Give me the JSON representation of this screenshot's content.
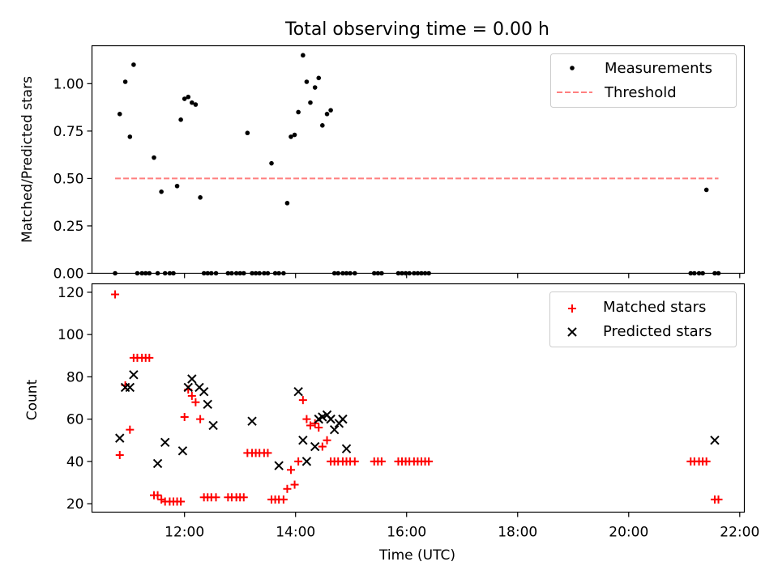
{
  "chart_data": [
    {
      "type": "scatter",
      "title": "Total observing time = 0.00 h",
      "ylabel": "Matched/Predicted stars",
      "ylim": [
        0,
        1.2
      ],
      "xlim": [
        "10:20",
        "22:05"
      ],
      "grid": false,
      "legend_position": "top-right",
      "y_ticks": [
        "0.00",
        "0.25",
        "0.50",
        "0.75",
        "1.00"
      ],
      "series": [
        {
          "name": "Measurements",
          "color": "#000000",
          "marker": "dot",
          "x": [
            "10:45",
            "10:50",
            "10:56",
            "11:01",
            "11:05",
            "11:09",
            "11:14",
            "11:18",
            "11:22",
            "11:27",
            "11:31",
            "11:35",
            "11:39",
            "11:44",
            "11:48",
            "11:52",
            "11:56",
            "12:00",
            "12:04",
            "12:08",
            "12:12",
            "12:17",
            "12:21",
            "12:25",
            "12:29",
            "12:34",
            "12:47",
            "12:51",
            "12:56",
            "13:00",
            "13:04",
            "13:08",
            "13:13",
            "13:17",
            "13:21",
            "13:26",
            "13:30",
            "13:34",
            "13:38",
            "13:42",
            "13:47",
            "13:51",
            "13:55",
            "13:59",
            "14:03",
            "14:08",
            "14:12",
            "14:16",
            "14:21",
            "14:25",
            "14:29",
            "14:34",
            "14:38",
            "14:42",
            "14:46",
            "14:51",
            "14:55",
            "14:59",
            "15:04",
            "15:25",
            "15:29",
            "15:33",
            "15:51",
            "15:55",
            "15:59",
            "16:03",
            "16:08",
            "16:12",
            "16:16",
            "16:20",
            "16:24",
            "21:07",
            "21:11",
            "21:16",
            "21:20",
            "21:24",
            "21:33",
            "21:37"
          ],
          "y": [
            0.0,
            0.84,
            1.01,
            0.72,
            1.1,
            0.0,
            0.0,
            0.0,
            0.0,
            0.61,
            0.0,
            0.43,
            0.0,
            0.0,
            0.0,
            0.46,
            0.81,
            0.92,
            0.93,
            0.9,
            0.89,
            0.4,
            0.0,
            0.0,
            0.0,
            0.0,
            0.0,
            0.0,
            0.0,
            0.0,
            0.0,
            0.74,
            0.0,
            0.0,
            0.0,
            0.0,
            0.0,
            0.58,
            0.0,
            0.0,
            0.0,
            0.37,
            0.72,
            0.73,
            0.85,
            1.15,
            1.01,
            0.9,
            0.98,
            1.03,
            0.78,
            0.84,
            0.86,
            0.0,
            0.0,
            0.0,
            0.0,
            0.0,
            0.0,
            0.0,
            0.0,
            0.0,
            0.0,
            0.0,
            0.0,
            0.0,
            0.0,
            0.0,
            0.0,
            0.0,
            0.0,
            0.0,
            0.0,
            0.0,
            0.0,
            0.44,
            0.0,
            0.0
          ]
        },
        {
          "name": "Threshold",
          "color": "#ff7f7f",
          "style": "dashed",
          "x": [
            "10:45",
            "21:37"
          ],
          "y": [
            0.5,
            0.5
          ]
        }
      ]
    },
    {
      "type": "scatter",
      "xlabel": "Time (UTC)",
      "ylabel": "Count",
      "ylim": [
        16,
        124
      ],
      "xlim": [
        "10:20",
        "22:05"
      ],
      "grid": false,
      "legend_position": "top-right",
      "x_ticks": [
        "12:00",
        "14:00",
        "16:00",
        "18:00",
        "20:00",
        "22:00"
      ],
      "y_ticks": [
        "20",
        "40",
        "60",
        "80",
        "100",
        "120"
      ],
      "series": [
        {
          "name": "Matched stars",
          "color": "#ff0000",
          "marker": "plus",
          "x": [
            "10:45",
            "10:50",
            "10:56",
            "11:01",
            "11:05",
            "11:09",
            "11:14",
            "11:18",
            "11:22",
            "11:27",
            "11:31",
            "11:35",
            "11:39",
            "11:44",
            "11:48",
            "11:52",
            "11:56",
            "12:00",
            "12:04",
            "12:08",
            "12:12",
            "12:17",
            "12:21",
            "12:25",
            "12:29",
            "12:34",
            "12:47",
            "12:51",
            "12:56",
            "13:00",
            "13:04",
            "13:08",
            "13:13",
            "13:17",
            "13:21",
            "13:26",
            "13:30",
            "13:34",
            "13:38",
            "13:42",
            "13:47",
            "13:51",
            "13:55",
            "13:59",
            "14:03",
            "14:08",
            "14:12",
            "14:16",
            "14:21",
            "14:25",
            "14:29",
            "14:34",
            "14:38",
            "14:42",
            "14:46",
            "14:51",
            "14:55",
            "14:59",
            "15:04",
            "15:25",
            "15:29",
            "15:33",
            "15:51",
            "15:55",
            "15:59",
            "16:03",
            "16:08",
            "16:12",
            "16:16",
            "16:20",
            "16:24",
            "21:07",
            "21:11",
            "21:16",
            "21:20",
            "21:24",
            "21:33",
            "21:37"
          ],
          "y": [
            119,
            43,
            76,
            55,
            89,
            89,
            89,
            89,
            89,
            24,
            24,
            22,
            21,
            21,
            21,
            21,
            21,
            61,
            74,
            71,
            68,
            60,
            23,
            23,
            23,
            23,
            23,
            23,
            23,
            23,
            23,
            44,
            44,
            44,
            44,
            44,
            44,
            22,
            22,
            22,
            22,
            27,
            36,
            29,
            40,
            69,
            60,
            57,
            58,
            56,
            47,
            50,
            40,
            40,
            40,
            40,
            40,
            40,
            40,
            40,
            40,
            40,
            40,
            40,
            40,
            40,
            40,
            40,
            40,
            40,
            40,
            40,
            40,
            40,
            40,
            40,
            22,
            22
          ]
        },
        {
          "name": "Predicted stars",
          "color": "#000000",
          "marker": "x",
          "x": [
            "10:50",
            "10:56",
            "11:01",
            "11:05",
            "11:31",
            "11:39",
            "11:58",
            "12:04",
            "12:08",
            "12:16",
            "12:21",
            "12:25",
            "12:31",
            "13:13",
            "13:42",
            "14:03",
            "14:08",
            "14:12",
            "14:21",
            "14:25",
            "14:29",
            "14:34",
            "14:38",
            "14:42",
            "14:47",
            "14:51",
            "14:55",
            "21:33"
          ],
          "y": [
            51,
            75,
            75,
            81,
            39,
            49,
            45,
            75,
            79,
            75,
            73,
            67,
            57,
            59,
            38,
            73,
            50,
            40,
            47,
            60,
            61,
            62,
            60,
            55,
            58,
            60,
            46,
            50
          ]
        }
      ]
    }
  ]
}
